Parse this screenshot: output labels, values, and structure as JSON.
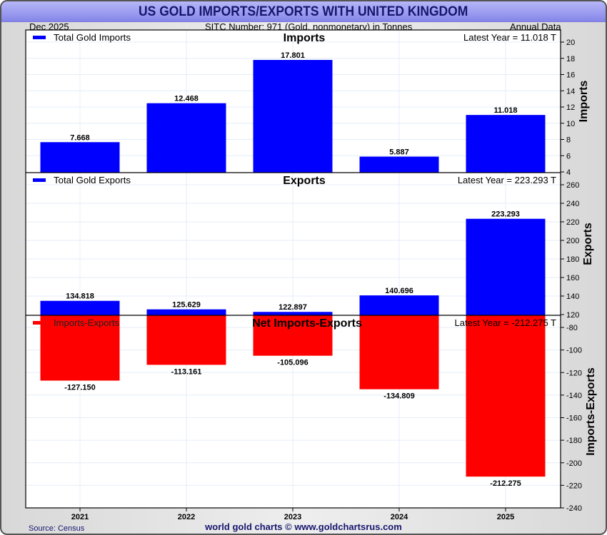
{
  "header": {
    "title": "US GOLD IMPORTS/EXPORTS WITH UNITED KINGDOM",
    "date": "Dec  2025",
    "subtitle": "SITC Number: 971 (Gold, nonmonetary) in Tonnes",
    "frequency": "Annual Data"
  },
  "footer": {
    "source": "Source: Census",
    "credit": "world gold charts © www.goldchartsrus.com"
  },
  "colors": {
    "imports": "#0000ff",
    "exports": "#0000ff",
    "net": "#ff0000",
    "grid": "#e4eef8",
    "title_text": "#16166e"
  },
  "chart_data": [
    {
      "type": "bar",
      "panel": "imports",
      "title": "Imports",
      "legend": "Total Gold Imports",
      "latest_label": "Latest Year = 11.018 T",
      "ylabel": "Imports",
      "categories": [
        "2021",
        "2022",
        "2023",
        "2024",
        "2025"
      ],
      "values": [
        7.668,
        12.468,
        17.801,
        5.887,
        11.018
      ],
      "value_labels": [
        "7.668",
        "12.468",
        "17.801",
        "5.887",
        "11.018"
      ],
      "ylim": [
        4,
        20
      ],
      "yticks": [
        4,
        6,
        8,
        10,
        12,
        14,
        16,
        18,
        20
      ],
      "grid": true,
      "legend_position": "top-left"
    },
    {
      "type": "bar",
      "panel": "exports",
      "title": "Exports",
      "legend": "Total Gold Exports",
      "latest_label": "Latest Year = 223.293 T",
      "ylabel": "Exports",
      "categories": [
        "2021",
        "2022",
        "2023",
        "2024",
        "2025"
      ],
      "values": [
        134.818,
        125.629,
        122.897,
        140.696,
        223.293
      ],
      "value_labels": [
        "134.818",
        "125.629",
        "122.897",
        "140.696",
        "223.293"
      ],
      "ylim": [
        120,
        260
      ],
      "yticks": [
        120,
        140,
        160,
        180,
        200,
        220,
        240,
        260
      ],
      "grid": true,
      "legend_position": "top-left"
    },
    {
      "type": "bar",
      "panel": "net",
      "title": "Net Imports-Exports",
      "legend": "Imports-Exports",
      "latest_label": "Latest Year = -212.275 T",
      "ylabel": "Imports-Exports",
      "categories": [
        "2021",
        "2022",
        "2023",
        "2024",
        "2025"
      ],
      "values": [
        -127.15,
        -113.161,
        -105.096,
        -134.809,
        -212.275
      ],
      "value_labels": [
        "-127.150",
        "-113.161",
        "-105.096",
        "-134.809",
        "-212.275"
      ],
      "ylim": [
        -240,
        -80
      ],
      "yticks": [
        -80,
        -100,
        -120,
        -140,
        -160,
        -180,
        -200,
        -220,
        -240
      ],
      "grid": true,
      "legend_position": "top-left"
    }
  ]
}
